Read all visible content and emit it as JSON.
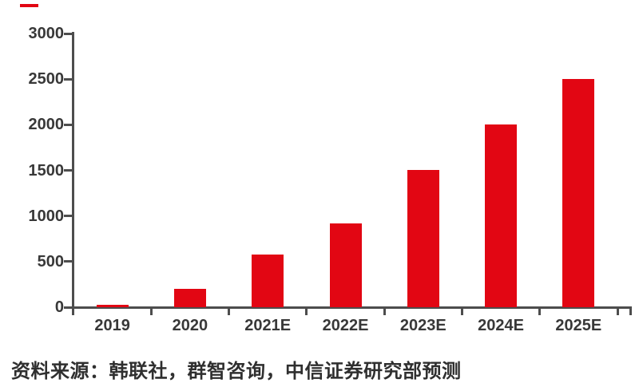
{
  "chart_data": {
    "type": "bar",
    "categories": [
      "2019",
      "2020",
      "2021E",
      "2022E",
      "2023E",
      "2024E",
      "2025E"
    ],
    "values": [
      30,
      200,
      580,
      920,
      1500,
      2000,
      2500
    ],
    "title": "",
    "xlabel": "",
    "ylabel": "",
    "ylim": [
      0,
      3000
    ],
    "yticks": [
      0,
      500,
      1000,
      1500,
      2000,
      2500,
      3000
    ],
    "grid": false,
    "legend": "none",
    "bar_color": "#e20613",
    "axis_color": "#4d4d4d",
    "tick_label_color": "#383838"
  },
  "decorations": {
    "top_left_dash_color": "#e20613"
  },
  "footer": {
    "source_note": "资料来源：韩联社，群智咨询，中信证券研究部预测"
  }
}
